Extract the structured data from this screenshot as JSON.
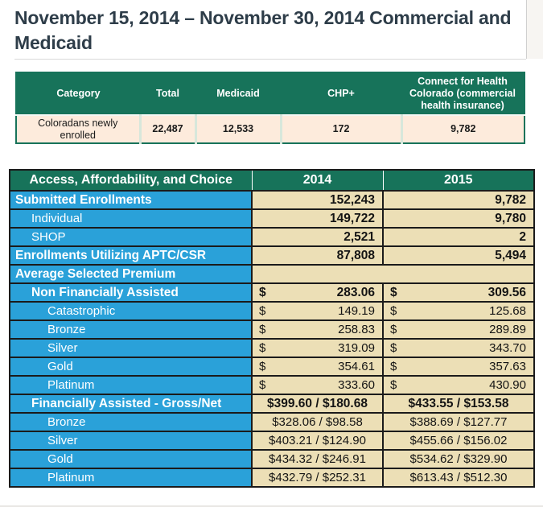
{
  "page": {
    "title": "November 15, 2014 – November 30, 2014 Commercial and Medicaid"
  },
  "colors": {
    "green": "#17735a",
    "blue": "#2aa1d9",
    "tan": "#ecdfb6",
    "cream": "#fdebdc",
    "dark_border": "#1b1b1b",
    "title_text": "#2e3d49"
  },
  "summary_table": {
    "headers": [
      "Category",
      "Total",
      "Medicaid",
      "CHP+",
      "Connect for Health Colorado (commercial health insurance)"
    ],
    "rows": [
      {
        "category": "Coloradans newly enrolled",
        "total": "22,487",
        "medicaid": "12,533",
        "chp": "172",
        "cfhc": "9,782"
      }
    ]
  },
  "metrics_table": {
    "headers": [
      "Access, Affordability, and Choice",
      "2014",
      "2015"
    ],
    "currency_symbol": "$",
    "rows": [
      {
        "label": "Submitted Enrollments",
        "indent": 0,
        "bold": true,
        "value_bold": true,
        "format": "number",
        "v2014": "152,243",
        "v2015": "9,782"
      },
      {
        "label": "Individual",
        "indent": 1,
        "bold": false,
        "value_bold": true,
        "format": "number",
        "v2014": "149,722",
        "v2015": "9,780"
      },
      {
        "label": "SHOP",
        "indent": 1,
        "bold": false,
        "value_bold": true,
        "format": "number",
        "v2014": "2,521",
        "v2015": "2"
      },
      {
        "label": "Enrollments Utilizing APTC/CSR",
        "indent": 0,
        "bold": true,
        "value_bold": true,
        "format": "number",
        "v2014": "87,808",
        "v2015": "5,494"
      },
      {
        "label": "Average Selected Premium",
        "indent": 0,
        "bold": true,
        "value_bold": false,
        "format": "empty",
        "v2014": "",
        "v2015": ""
      },
      {
        "label": "Non Financially Assisted",
        "indent": 1,
        "bold": true,
        "value_bold": true,
        "format": "accounting",
        "v2014": "283.06",
        "v2015": "309.56"
      },
      {
        "label": "Catastrophic",
        "indent": 2,
        "bold": false,
        "value_bold": false,
        "format": "accounting",
        "v2014": "149.19",
        "v2015": "125.68"
      },
      {
        "label": "Bronze",
        "indent": 2,
        "bold": false,
        "value_bold": false,
        "format": "accounting",
        "v2014": "258.83",
        "v2015": "289.89"
      },
      {
        "label": "Silver",
        "indent": 2,
        "bold": false,
        "value_bold": false,
        "format": "accounting",
        "v2014": "319.09",
        "v2015": "343.70"
      },
      {
        "label": "Gold",
        "indent": 2,
        "bold": false,
        "value_bold": false,
        "format": "accounting",
        "v2014": "354.61",
        "v2015": "357.63"
      },
      {
        "label": "Platinum",
        "indent": 2,
        "bold": false,
        "value_bold": false,
        "format": "accounting",
        "v2014": "333.60",
        "v2015": "430.90"
      },
      {
        "label": "Financially Assisted - Gross/Net",
        "indent": 1,
        "bold": true,
        "value_bold": true,
        "format": "center",
        "v2014": "$399.60 / $180.68",
        "v2015": "$433.55 / $153.58"
      },
      {
        "label": "Bronze",
        "indent": 2,
        "bold": false,
        "value_bold": false,
        "format": "center",
        "v2014": "$328.06 / $98.58",
        "v2015": "$388.69 / $127.77"
      },
      {
        "label": "Silver",
        "indent": 2,
        "bold": false,
        "value_bold": false,
        "format": "center",
        "v2014": "$403.21 / $124.90",
        "v2015": "$455.66 / $156.02"
      },
      {
        "label": "Gold",
        "indent": 2,
        "bold": false,
        "value_bold": false,
        "format": "center",
        "v2014": "$434.32 / $246.91",
        "v2015": "$534.62 / $329.90"
      },
      {
        "label": "Platinum",
        "indent": 2,
        "bold": false,
        "value_bold": false,
        "format": "center",
        "v2014": "$432.79 / $252.31",
        "v2015": "$613.43 / $512.30"
      }
    ]
  }
}
